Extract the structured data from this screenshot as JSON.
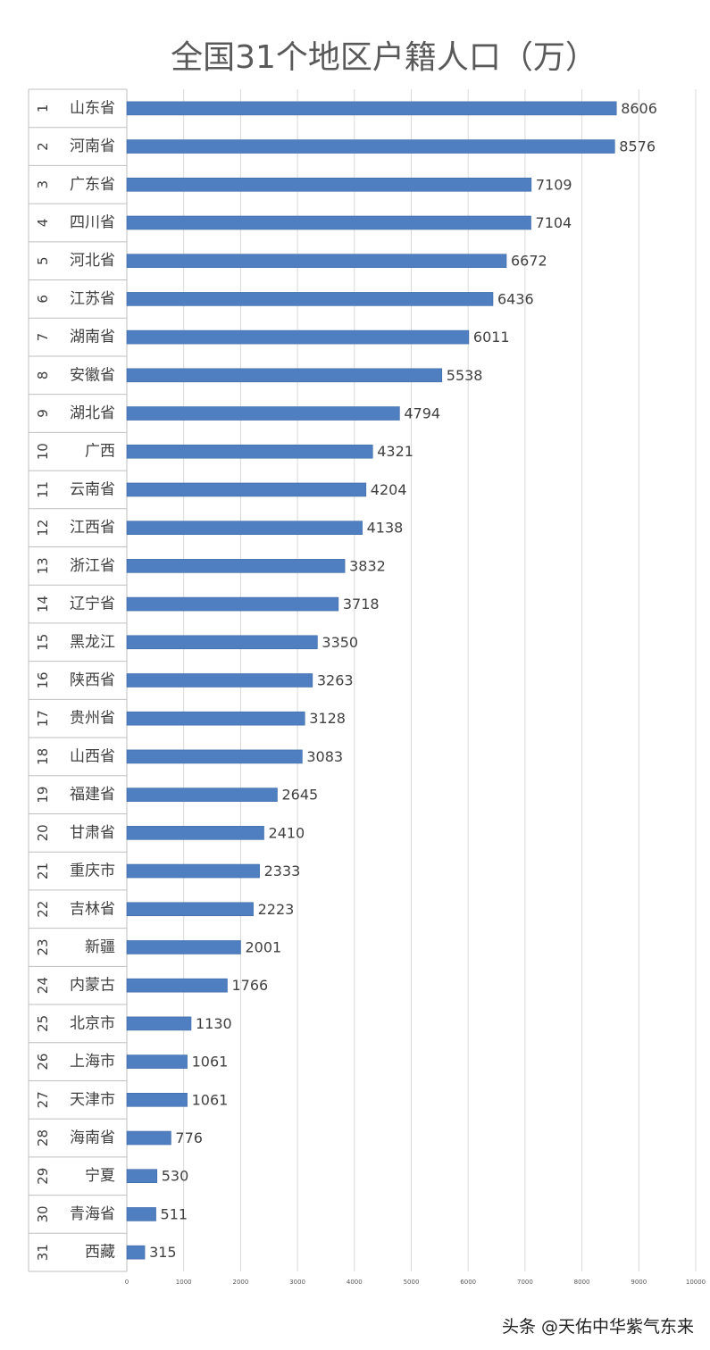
{
  "chart_data": {
    "type": "bar",
    "orientation": "horizontal",
    "title": "全国31个地区户籍人口（万）",
    "xlabel": "",
    "ylabel": "",
    "xlim": [
      0,
      10000
    ],
    "x_ticks": [
      0,
      1000,
      2000,
      3000,
      4000,
      5000,
      6000,
      7000,
      8000,
      9000,
      10000
    ],
    "bar_color": "#4f7fc0",
    "grid": true,
    "legend": "none",
    "rows": [
      {
        "rank": "1",
        "name": "山东省",
        "value": 8606
      },
      {
        "rank": "2",
        "name": "河南省",
        "value": 8576
      },
      {
        "rank": "3",
        "name": "广东省",
        "value": 7109
      },
      {
        "rank": "4",
        "name": "四川省",
        "value": 7104
      },
      {
        "rank": "5",
        "name": "河北省",
        "value": 6672
      },
      {
        "rank": "6",
        "name": "江苏省",
        "value": 6436
      },
      {
        "rank": "7",
        "name": "湖南省",
        "value": 6011
      },
      {
        "rank": "8",
        "name": "安徽省",
        "value": 5538
      },
      {
        "rank": "9",
        "name": "湖北省",
        "value": 4794
      },
      {
        "rank": "10",
        "name": "广西",
        "value": 4321
      },
      {
        "rank": "11",
        "name": "云南省",
        "value": 4204
      },
      {
        "rank": "12",
        "name": "江西省",
        "value": 4138
      },
      {
        "rank": "13",
        "name": "浙江省",
        "value": 3832
      },
      {
        "rank": "14",
        "name": "辽宁省",
        "value": 3718
      },
      {
        "rank": "15",
        "name": "黑龙江",
        "value": 3350
      },
      {
        "rank": "16",
        "name": "陕西省",
        "value": 3263
      },
      {
        "rank": "17",
        "name": "贵州省",
        "value": 3128
      },
      {
        "rank": "18",
        "name": "山西省",
        "value": 3083
      },
      {
        "rank": "19",
        "name": "福建省",
        "value": 2645
      },
      {
        "rank": "20",
        "name": "甘肃省",
        "value": 2410
      },
      {
        "rank": "21",
        "name": "重庆市",
        "value": 2333
      },
      {
        "rank": "22",
        "name": "吉林省",
        "value": 2223
      },
      {
        "rank": "23",
        "name": "新疆",
        "value": 2001
      },
      {
        "rank": "24",
        "name": "内蒙古",
        "value": 1766
      },
      {
        "rank": "25",
        "name": "北京市",
        "value": 1130
      },
      {
        "rank": "26",
        "name": "上海市",
        "value": 1061
      },
      {
        "rank": "27",
        "name": "天津市",
        "value": 1061
      },
      {
        "rank": "28",
        "name": "海南省",
        "value": 776
      },
      {
        "rank": "29",
        "name": "宁夏",
        "value": 530
      },
      {
        "rank": "30",
        "name": "青海省",
        "value": 511
      },
      {
        "rank": "31",
        "name": "西藏",
        "value": 315
      }
    ]
  },
  "watermark": "头条 @天佑中华紫气东来"
}
